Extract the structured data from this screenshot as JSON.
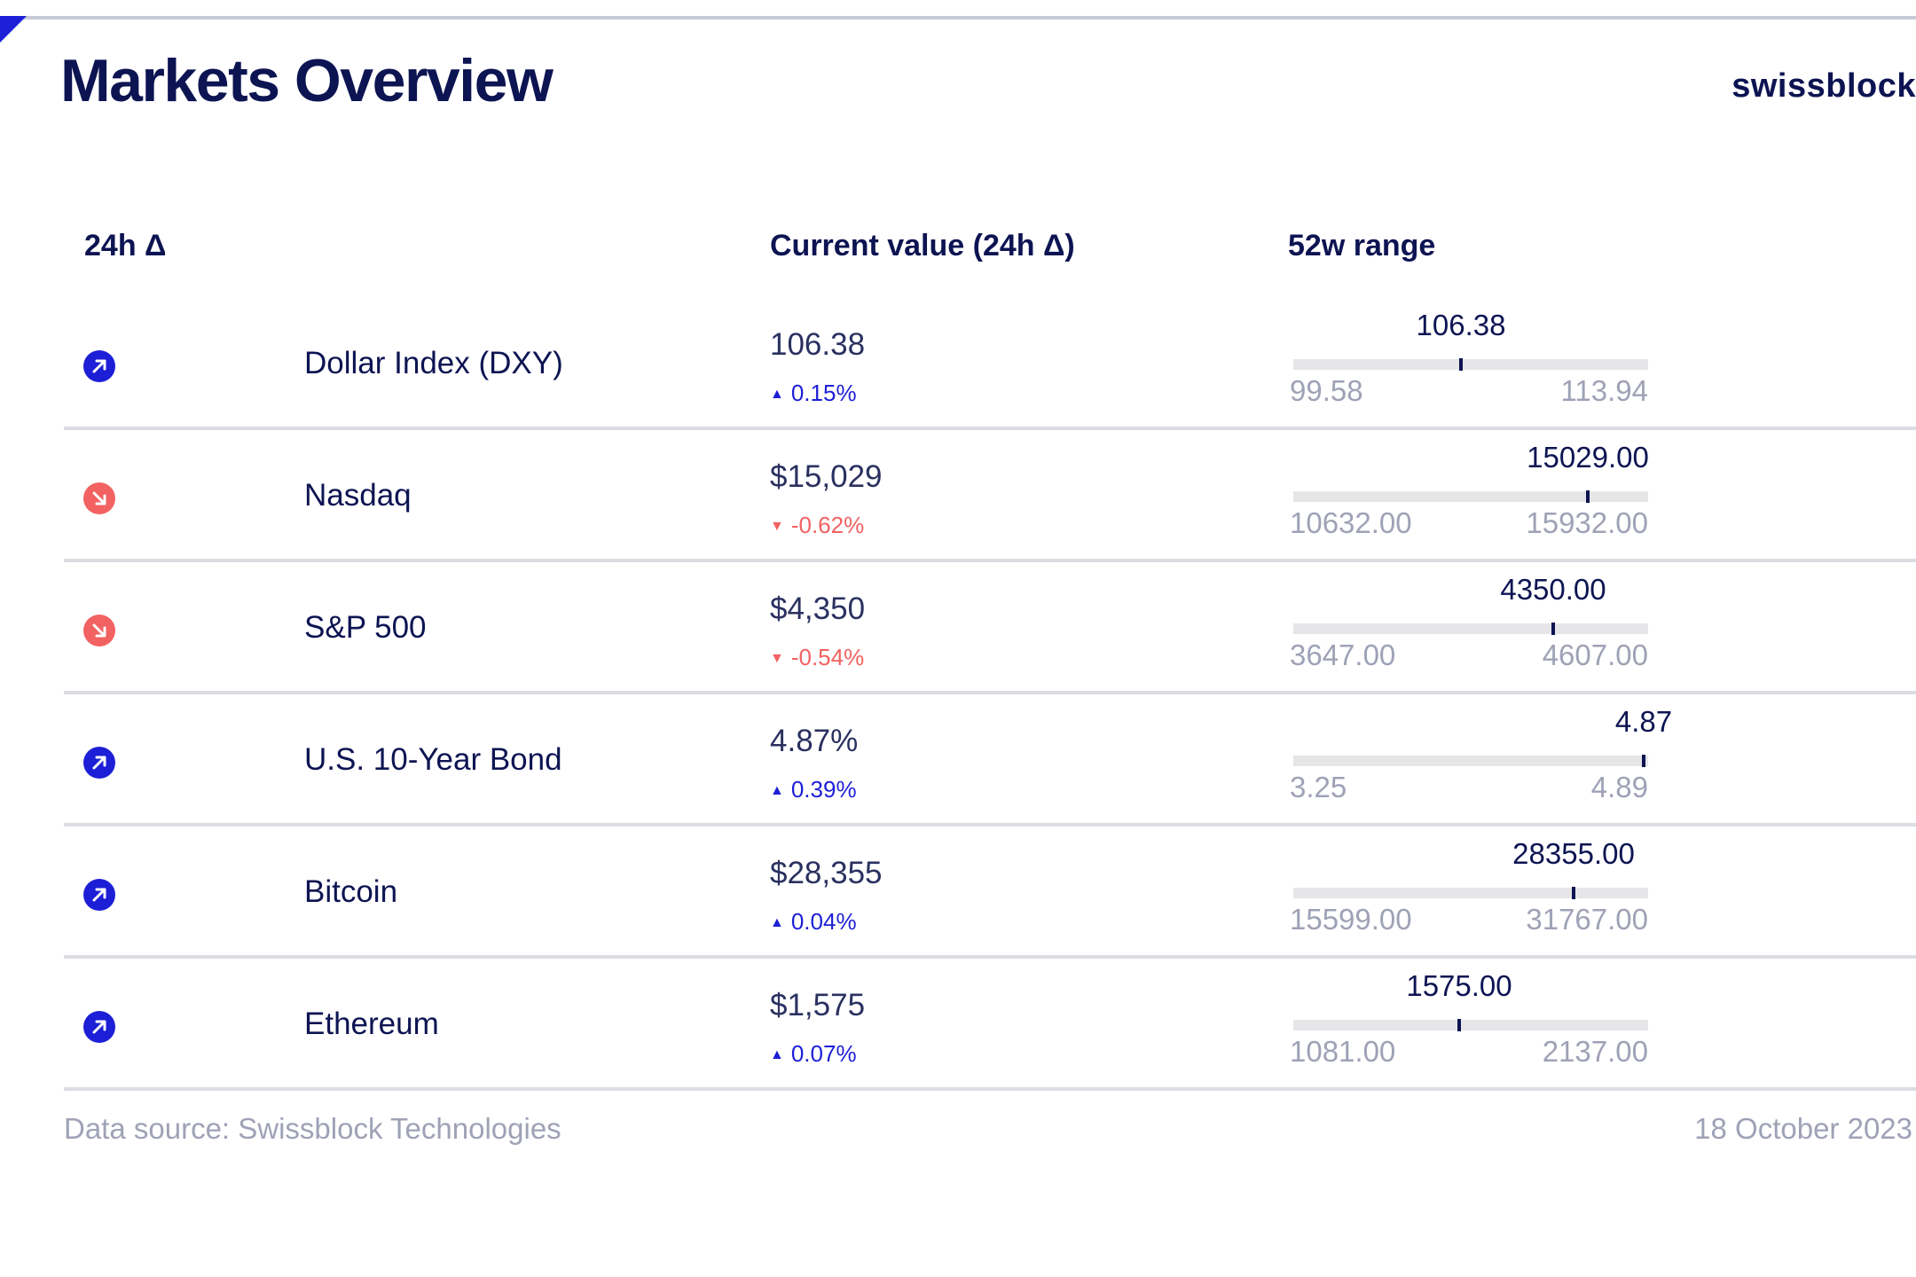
{
  "page": {
    "title": "Markets Overview",
    "brand": "swissblock"
  },
  "table": {
    "headers": {
      "delta": "24h Δ",
      "current": "Current value (24h Δ)",
      "range": "52w range"
    },
    "rows": [
      {
        "name": "Dollar Index (DXY)",
        "direction": "up",
        "icon": "arrow-up-right-icon",
        "value": "106.38",
        "change": "0.15%",
        "range_current": "106.38",
        "range_min": "99.58",
        "range_max": "113.94",
        "position": 0.4735
      },
      {
        "name": "Nasdaq",
        "direction": "down",
        "icon": "arrow-down-right-icon",
        "value": "$15,029",
        "change": "-0.62%",
        "range_current": "15029.00",
        "range_min": "10632.00",
        "range_max": "15932.00",
        "position": 0.8296
      },
      {
        "name": "S&P 500",
        "direction": "down",
        "icon": "arrow-down-right-icon",
        "value": "$4,350",
        "change": "-0.54%",
        "range_current": "4350.00",
        "range_min": "3647.00",
        "range_max": "4607.00",
        "position": 0.7323
      },
      {
        "name": "U.S. 10-Year Bond",
        "direction": "up",
        "icon": "arrow-up-right-icon",
        "value": "4.87%",
        "change": "0.39%",
        "range_current": "4.87",
        "range_min": "3.25",
        "range_max": "4.89",
        "position": 0.9878
      },
      {
        "name": "Bitcoin",
        "direction": "up",
        "icon": "arrow-up-right-icon",
        "value": "$28,355",
        "change": "0.04%",
        "range_current": "28355.00",
        "range_min": "15599.00",
        "range_max": "31767.00",
        "position": 0.789
      },
      {
        "name": "Ethereum",
        "direction": "up",
        "icon": "arrow-up-right-icon",
        "value": "$1,575",
        "change": "0.07%",
        "range_current": "1575.00",
        "range_min": "1081.00",
        "range_max": "2137.00",
        "position": 0.4678
      }
    ]
  },
  "footer": {
    "source": "Data source: Swissblock Technologies",
    "date": "18 October 2023"
  },
  "colors": {
    "navy": "#0d1452",
    "up": "#1d1fd6",
    "down": "#f26262",
    "muted": "#9fa2b6",
    "track": "#e6e6e9"
  }
}
